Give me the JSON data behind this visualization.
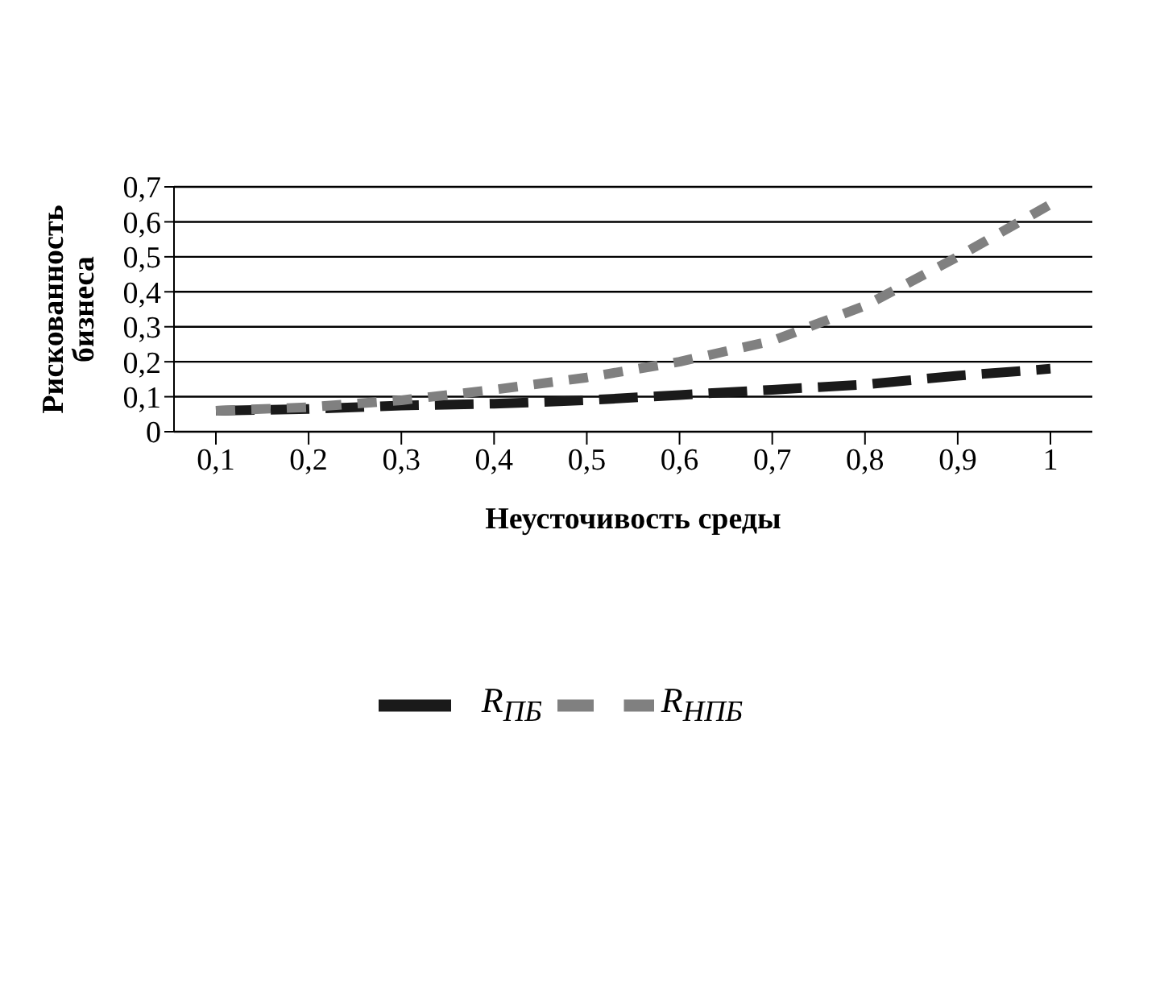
{
  "chart_data": {
    "type": "line",
    "xlabel": "Неусточивость среды",
    "ylabel": "Рискованность бизнеса",
    "categories": [
      "0,1",
      "0,2",
      "0,3",
      "0,4",
      "0,5",
      "0,6",
      "0,7",
      "0,8",
      "0,9",
      "1"
    ],
    "series": [
      {
        "name": "R$_{ПБ}$",
        "color": "#1a1a1a",
        "values": [
          0.06,
          0.065,
          0.075,
          0.08,
          0.09,
          0.105,
          0.12,
          0.135,
          0.16,
          0.18
        ]
      },
      {
        "name": "R$_{НПБ}$",
        "color": "#808080",
        "values": [
          0.06,
          0.07,
          0.09,
          0.12,
          0.155,
          0.2,
          0.26,
          0.36,
          0.5,
          0.65
        ]
      }
    ],
    "ylim": [
      0,
      0.7
    ],
    "yticks": [
      {
        "value": 0,
        "label": "0"
      },
      {
        "value": 0.1,
        "label": "0,1"
      },
      {
        "value": 0.2,
        "label": "0,2"
      },
      {
        "value": 0.3,
        "label": "0,3"
      },
      {
        "value": 0.4,
        "label": "0,4"
      },
      {
        "value": 0.5,
        "label": "0,5"
      },
      {
        "value": 0.6,
        "label": "0,6"
      },
      {
        "value": 0.7,
        "label": "0,7"
      }
    ],
    "grid": "y",
    "legend": "bottom",
    "line_style": "dashed",
    "marker": "none"
  }
}
